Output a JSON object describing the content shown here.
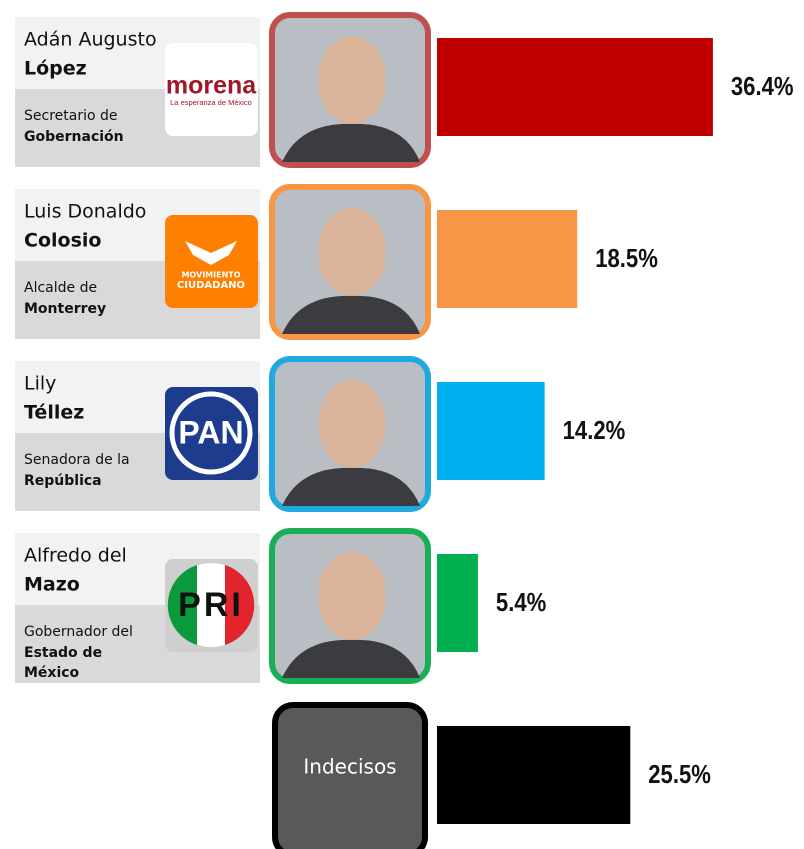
{
  "chart_data": {
    "type": "bar",
    "candidates": [
      {
        "name": "Adán Augusto",
        "surname": "López",
        "role": "Secretario de",
        "role_bold": [
          "Gobernación"
        ],
        "logo": [
          "morena",
          "La esperanza de México"
        ]
      },
      {
        "name": "Luis Donaldo",
        "surname": "Colosio",
        "role": "Alcalde de",
        "role_bold": [
          "Monterrey"
        ],
        "logo": [
          "MOVIMIENTO",
          "CIUDADANO"
        ]
      },
      {
        "name": "Lily",
        "surname": "Téllez",
        "role": "Senadora de la",
        "role_bold": [
          "República"
        ],
        "logo": [
          "PAN"
        ]
      },
      {
        "name": "Alfredo del",
        "surname": "Mazo",
        "role": "Gobernador del",
        "role_bold": [
          "Estado de",
          "México"
        ],
        "logo": [
          "PRI"
        ]
      },
      {
        "label": "Indecisos"
      }
    ],
    "values": [
      36.4,
      18.5,
      14.2,
      5.4,
      25.5
    ],
    "value_labels": [
      "36.4%",
      "18.5%",
      "14.2%",
      "5.4%",
      "25.5%"
    ],
    "colors": [
      "#c00000",
      "#f79646",
      "#00b0f0",
      "#00b050",
      "#000000"
    ],
    "frame_colors": [
      "#c0504d",
      "#f79646",
      "#1ea9e1",
      "#1aaf54",
      "#000000"
    ]
  }
}
